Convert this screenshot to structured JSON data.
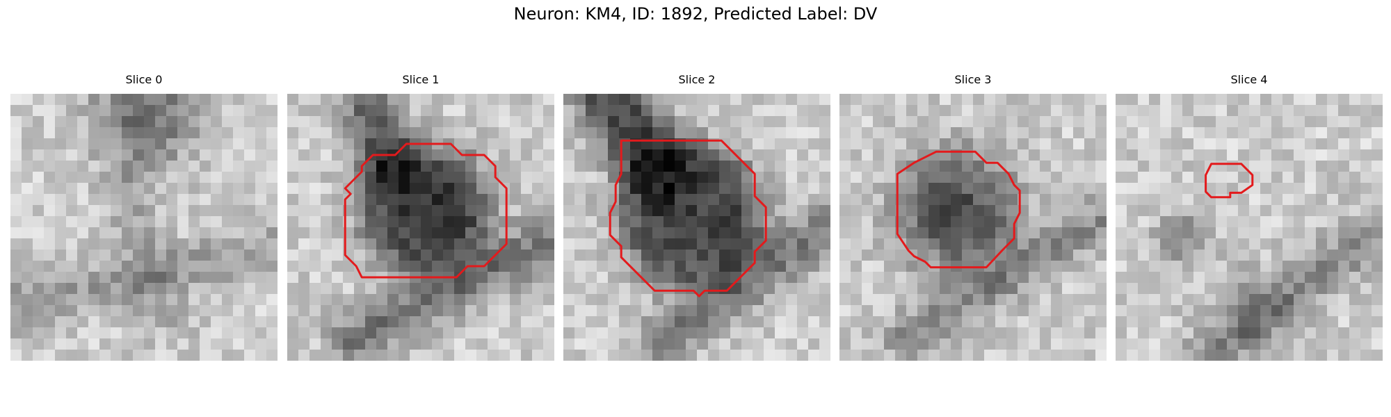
{
  "figure": {
    "title": "Neuron: KM4, ID: 1892, Predicted Label: DV"
  },
  "colors": {
    "contour": "#e31a1c",
    "colormap": "gray"
  },
  "slices": [
    {
      "title": "Slice 0",
      "contour": []
    },
    {
      "title": "Slice 1",
      "contour": [
        [
          7.7,
          5.5
        ],
        [
          9.7,
          5.5
        ],
        [
          10.7,
          4.5
        ],
        [
          14.7,
          4.5
        ],
        [
          15.7,
          5.5
        ],
        [
          17.7,
          5.5
        ],
        [
          18.7,
          6.5
        ],
        [
          18.7,
          7.5
        ],
        [
          19.7,
          8.5
        ],
        [
          19.7,
          13.5
        ],
        [
          17.7,
          15.5
        ],
        [
          16.2,
          15.5
        ],
        [
          15.2,
          16.5
        ],
        [
          6.7,
          16.5
        ],
        [
          6.2,
          15.5
        ],
        [
          5.2,
          14.5
        ],
        [
          5.2,
          9.5
        ],
        [
          5.7,
          9.0
        ],
        [
          5.2,
          8.5
        ],
        [
          5.7,
          8.0
        ],
        [
          6.7,
          7.0
        ],
        [
          6.7,
          6.5
        ]
      ]
    },
    {
      "title": "Slice 2",
      "contour": [
        [
          5.2,
          4.2
        ],
        [
          14.2,
          4.2
        ],
        [
          15.2,
          5.2
        ],
        [
          16.2,
          6.2
        ],
        [
          17.2,
          7.2
        ],
        [
          17.2,
          9.2
        ],
        [
          18.2,
          10.2
        ],
        [
          18.2,
          12.2
        ],
        [
          18.2,
          13.2
        ],
        [
          17.2,
          14.2
        ],
        [
          17.2,
          15.2
        ],
        [
          16.2,
          16.2
        ],
        [
          14.7,
          17.7
        ],
        [
          12.7,
          17.7
        ],
        [
          12.2,
          18.2
        ],
        [
          11.7,
          17.7
        ],
        [
          8.2,
          17.7
        ],
        [
          6.2,
          15.7
        ],
        [
          5.2,
          14.7
        ],
        [
          5.2,
          13.7
        ],
        [
          4.2,
          12.7
        ],
        [
          4.2,
          12.2
        ],
        [
          4.2,
          10.7
        ],
        [
          4.7,
          9.7
        ],
        [
          4.7,
          8.2
        ],
        [
          5.2,
          7.2
        ]
      ]
    },
    {
      "title": "Slice 3",
      "contour": [
        [
          8.7,
          5.2
        ],
        [
          12.2,
          5.2
        ],
        [
          13.2,
          6.2
        ],
        [
          14.2,
          6.2
        ],
        [
          15.2,
          7.2
        ],
        [
          15.7,
          8.2
        ],
        [
          16.2,
          8.7
        ],
        [
          16.2,
          10.7
        ],
        [
          15.7,
          11.7
        ],
        [
          15.7,
          13.0
        ],
        [
          14.7,
          14.0
        ],
        [
          13.2,
          15.6
        ],
        [
          8.2,
          15.6
        ],
        [
          7.7,
          15.1
        ],
        [
          6.7,
          14.6
        ],
        [
          6.2,
          14.1
        ],
        [
          5.2,
          12.6
        ],
        [
          5.2,
          7.2
        ],
        [
          6.7,
          6.2
        ],
        [
          7.7,
          5.7
        ]
      ]
    },
    {
      "title": "Slice 4",
      "contour": [
        [
          8.6,
          6.3
        ],
        [
          11.3,
          6.3
        ],
        [
          12.3,
          7.3
        ],
        [
          12.3,
          8.2
        ],
        [
          11.3,
          8.9
        ],
        [
          10.3,
          8.9
        ],
        [
          10.3,
          9.3
        ],
        [
          9.3,
          9.3
        ],
        [
          8.6,
          9.3
        ],
        [
          8.1,
          8.8
        ],
        [
          8.1,
          7.3
        ]
      ]
    }
  ]
}
